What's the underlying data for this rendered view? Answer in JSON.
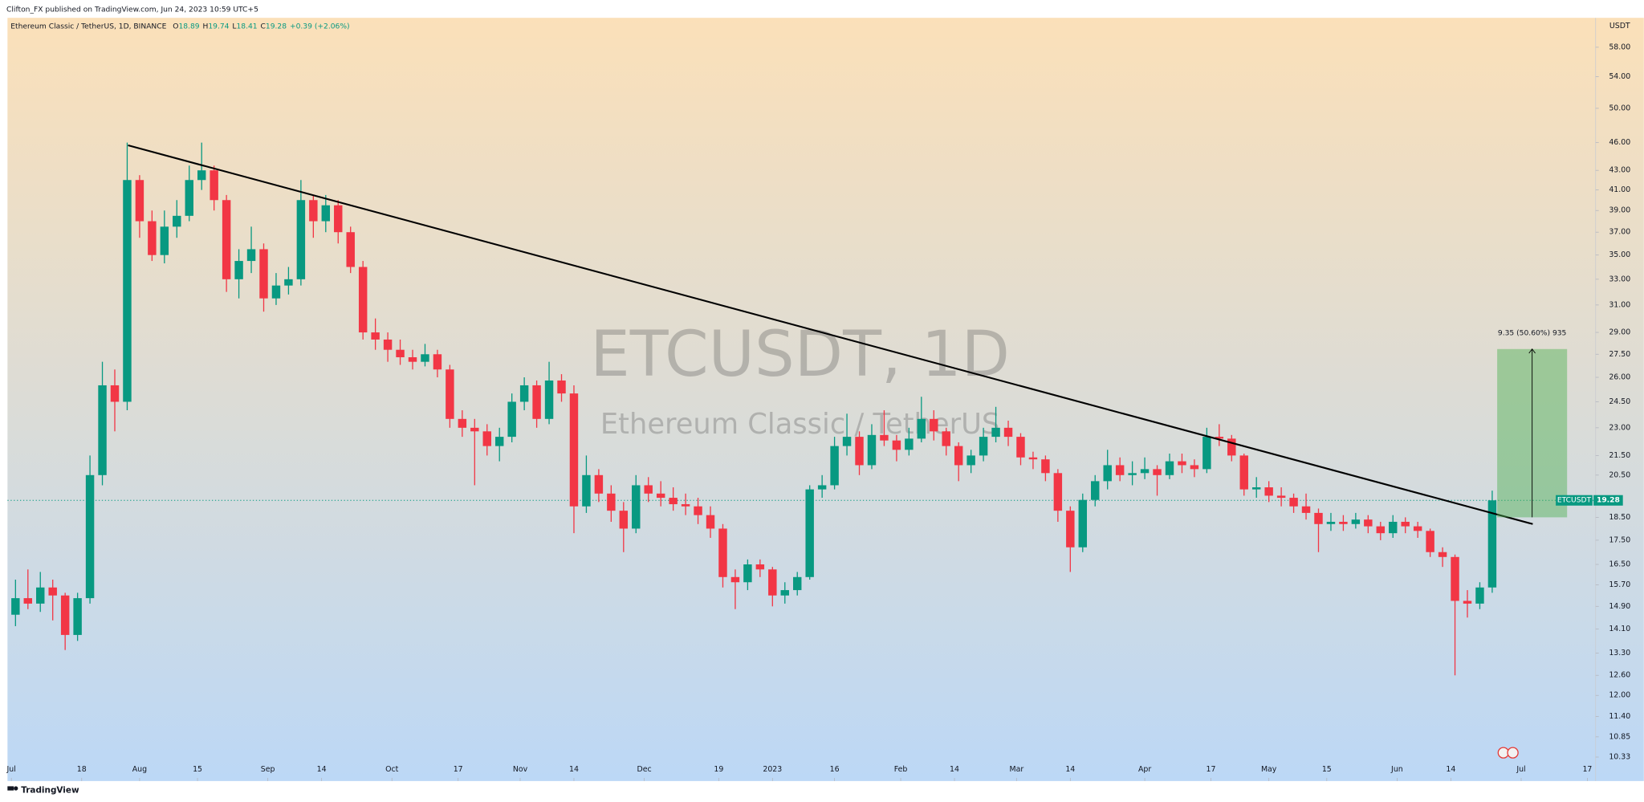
{
  "chart_data": {
    "type": "candlestick",
    "publisher": "Clifton_FX published on TradingView.com, Jun 24, 2023 10:59 UTC+5",
    "symbol_info": "Ethereum Classic / TetherUS, 1D, BINANCE",
    "ohlc_header": [
      {
        "label": "O",
        "value": 18.89
      },
      {
        "label": "H",
        "value": 19.74
      },
      {
        "label": "L",
        "value": 18.41
      },
      {
        "label": "C",
        "value": 19.28
      }
    ],
    "change": "+0.39 (+2.06%)",
    "watermark": "ETCUSDT, 1D",
    "watermark_sub": "Ethereum Classic / TetherUS",
    "y_unit": "USDT",
    "brand": "TradingView",
    "log_scale": true,
    "grid": false,
    "up_color": "#089981",
    "down_color": "#f23645",
    "xlim": [
      -0.94,
      383
    ],
    "ylim": [
      9.82,
      62.3
    ],
    "xticks": [
      {
        "value": 0,
        "label": "Jul"
      },
      {
        "value": 17,
        "label": "18"
      },
      {
        "value": 31,
        "label": "Aug"
      },
      {
        "value": 45,
        "label": "15"
      },
      {
        "value": 62,
        "label": "Sep"
      },
      {
        "value": 75,
        "label": "14"
      },
      {
        "value": 92,
        "label": "Oct"
      },
      {
        "value": 108,
        "label": "17"
      },
      {
        "value": 123,
        "label": "Nov"
      },
      {
        "value": 136,
        "label": "14"
      },
      {
        "value": 153,
        "label": "Dec"
      },
      {
        "value": 171,
        "label": "19"
      },
      {
        "value": 184,
        "label": "2023"
      },
      {
        "value": 199,
        "label": "16"
      },
      {
        "value": 215,
        "label": "Feb"
      },
      {
        "value": 228,
        "label": "14"
      },
      {
        "value": 243,
        "label": "Mar"
      },
      {
        "value": 256,
        "label": "14"
      },
      {
        "value": 274,
        "label": "Apr"
      },
      {
        "value": 290,
        "label": "17"
      },
      {
        "value": 304,
        "label": "May"
      },
      {
        "value": 318,
        "label": "15"
      },
      {
        "value": 335,
        "label": "Jun"
      },
      {
        "value": 348,
        "label": "14"
      },
      {
        "value": 365,
        "label": "Jul"
      },
      {
        "value": 381,
        "label": "17"
      }
    ],
    "yticks": [
      {
        "value": 58,
        "label": "58.00"
      },
      {
        "value": 54,
        "label": "54.00"
      },
      {
        "value": 50,
        "label": "50.00"
      },
      {
        "value": 46,
        "label": "46.00"
      },
      {
        "value": 43,
        "label": "43.00"
      },
      {
        "value": 41,
        "label": "41.00"
      },
      {
        "value": 39,
        "label": "39.00"
      },
      {
        "value": 37,
        "label": "37.00"
      },
      {
        "value": 35,
        "label": "35.00"
      },
      {
        "value": 33,
        "label": "33.00"
      },
      {
        "value": 31,
        "label": "31.00"
      },
      {
        "value": 29,
        "label": "29.00"
      },
      {
        "value": 27.5,
        "label": "27.50"
      },
      {
        "value": 26,
        "label": "26.00"
      },
      {
        "value": 24.5,
        "label": "24.50"
      },
      {
        "value": 23,
        "label": "23.00"
      },
      {
        "value": 21.5,
        "label": "21.50"
      },
      {
        "value": 20.5,
        "label": "20.50"
      },
      {
        "value": 18.5,
        "label": "18.50"
      },
      {
        "value": 17.5,
        "label": "17.50"
      },
      {
        "value": 16.5,
        "label": "16.50"
      },
      {
        "value": 15.7,
        "label": "15.70"
      },
      {
        "value": 14.9,
        "label": "14.90"
      },
      {
        "value": 14.1,
        "label": "14.10"
      },
      {
        "value": 13.3,
        "label": "13.30"
      },
      {
        "value": 12.6,
        "label": "12.60"
      },
      {
        "value": 12,
        "label": "12.00"
      },
      {
        "value": 11.4,
        "label": "11.40"
      },
      {
        "value": 10.85,
        "label": "10.85"
      },
      {
        "value": 10.33,
        "label": "10.33"
      }
    ],
    "candles": {
      "x": [
        1,
        4,
        7,
        10,
        13,
        16,
        19,
        22,
        25,
        28,
        31,
        34,
        37,
        40,
        43,
        46,
        49,
        52,
        55,
        58,
        61,
        64,
        67,
        70,
        73,
        76,
        79,
        82,
        85,
        88,
        91,
        94,
        97,
        100,
        103,
        106,
        109,
        112,
        115,
        118,
        121,
        124,
        127,
        130,
        133,
        136,
        139,
        142,
        145,
        148,
        151,
        154,
        157,
        160,
        163,
        166,
        169,
        172,
        175,
        178,
        181,
        184,
        187,
        190,
        193,
        196,
        199,
        202,
        205,
        208,
        211,
        214,
        217,
        220,
        223,
        226,
        229,
        232,
        235,
        238,
        241,
        244,
        247,
        250,
        253,
        256,
        259,
        262,
        265,
        268,
        271,
        274,
        277,
        280,
        283,
        286,
        289,
        292,
        295,
        298,
        301,
        304,
        307,
        310,
        313,
        316,
        319,
        322,
        325,
        328,
        331,
        334,
        337,
        340,
        343,
        346,
        349,
        352,
        355,
        358
      ],
      "ohlc": [
        [
          14.6,
          15.9,
          14.2,
          15.2
        ],
        [
          15.2,
          16.3,
          14.8,
          15.0
        ],
        [
          15.0,
          16.2,
          14.7,
          15.6
        ],
        [
          15.6,
          15.9,
          14.4,
          15.3
        ],
        [
          15.3,
          15.4,
          13.4,
          13.9
        ],
        [
          13.9,
          15.4,
          13.7,
          15.2
        ],
        [
          15.2,
          21.5,
          15.0,
          20.5
        ],
        [
          20.5,
          27.0,
          20.0,
          25.5
        ],
        [
          25.5,
          26.5,
          22.8,
          24.5
        ],
        [
          24.5,
          46.0,
          24.0,
          42.0
        ],
        [
          42.0,
          42.5,
          36.5,
          38.0
        ],
        [
          38.0,
          39.0,
          34.5,
          35.0
        ],
        [
          35.0,
          39.0,
          34.3,
          37.5
        ],
        [
          37.5,
          40.0,
          36.5,
          38.5
        ],
        [
          38.5,
          43.5,
          38.0,
          42.0
        ],
        [
          42.0,
          46.0,
          41.0,
          43.0
        ],
        [
          43.0,
          43.5,
          39.0,
          40.0
        ],
        [
          40.0,
          40.5,
          32.0,
          33.0
        ],
        [
          33.0,
          35.5,
          31.5,
          34.5
        ],
        [
          34.5,
          37.5,
          33.5,
          35.5
        ],
        [
          35.5,
          36.0,
          30.5,
          31.5
        ],
        [
          31.5,
          33.5,
          31.0,
          32.5
        ],
        [
          32.5,
          34.0,
          31.8,
          33.0
        ],
        [
          33.0,
          42.0,
          32.5,
          40.0
        ],
        [
          40.0,
          40.5,
          36.5,
          38.0
        ],
        [
          38.0,
          40.5,
          37.0,
          39.5
        ],
        [
          39.5,
          40.0,
          36.0,
          37.0
        ],
        [
          37.0,
          37.5,
          33.5,
          34.0
        ],
        [
          34.0,
          34.5,
          28.5,
          29.0
        ],
        [
          29.0,
          30.0,
          27.8,
          28.5
        ],
        [
          28.5,
          29.0,
          27.0,
          27.8
        ],
        [
          27.8,
          28.5,
          26.8,
          27.3
        ],
        [
          27.3,
          27.8,
          26.5,
          27.0
        ],
        [
          27.0,
          28.2,
          26.7,
          27.5
        ],
        [
          27.5,
          27.8,
          26.0,
          26.5
        ],
        [
          26.5,
          26.8,
          23.0,
          23.5
        ],
        [
          23.5,
          24.0,
          22.5,
          23.0
        ],
        [
          23.0,
          23.5,
          20.0,
          22.8
        ],
        [
          22.8,
          23.2,
          21.5,
          22.0
        ],
        [
          22.0,
          23.0,
          21.2,
          22.5
        ],
        [
          22.5,
          25.0,
          22.2,
          24.5
        ],
        [
          24.5,
          26.0,
          24.0,
          25.5
        ],
        [
          25.5,
          25.8,
          23.0,
          23.5
        ],
        [
          23.5,
          27.0,
          23.2,
          25.8
        ],
        [
          25.8,
          26.2,
          24.5,
          25.0
        ],
        [
          25.0,
          25.5,
          17.8,
          19.0
        ],
        [
          19.0,
          21.5,
          18.7,
          20.5
        ],
        [
          20.5,
          20.8,
          19.2,
          19.6
        ],
        [
          19.6,
          20.0,
          18.3,
          18.8
        ],
        [
          18.8,
          19.2,
          17.0,
          18.0
        ],
        [
          18.0,
          20.5,
          17.8,
          20.0
        ],
        [
          20.0,
          20.4,
          19.2,
          19.6
        ],
        [
          19.6,
          20.2,
          19.0,
          19.4
        ],
        [
          19.4,
          19.9,
          18.8,
          19.1
        ],
        [
          19.1,
          19.6,
          18.6,
          19.0
        ],
        [
          19.0,
          19.4,
          18.2,
          18.6
        ],
        [
          18.6,
          19.0,
          17.6,
          18.0
        ],
        [
          18.0,
          18.2,
          15.6,
          16.0
        ],
        [
          16.0,
          16.3,
          14.8,
          15.8
        ],
        [
          15.8,
          16.7,
          15.5,
          16.5
        ],
        [
          16.5,
          16.7,
          16.0,
          16.3
        ],
        [
          16.3,
          16.4,
          14.9,
          15.3
        ],
        [
          15.3,
          15.8,
          15.0,
          15.5
        ],
        [
          15.5,
          16.2,
          15.3,
          16.0
        ],
        [
          16.0,
          20.0,
          15.9,
          19.8
        ],
        [
          19.8,
          20.5,
          19.4,
          20.0
        ],
        [
          20.0,
          22.5,
          19.8,
          22.0
        ],
        [
          22.0,
          23.8,
          21.5,
          22.5
        ],
        [
          22.5,
          22.8,
          20.5,
          21.0
        ],
        [
          21.0,
          23.2,
          20.8,
          22.6
        ],
        [
          22.6,
          24.0,
          22.0,
          22.3
        ],
        [
          22.3,
          22.6,
          21.2,
          21.8
        ],
        [
          21.8,
          23.0,
          21.5,
          22.4
        ],
        [
          22.4,
          24.8,
          22.2,
          23.5
        ],
        [
          23.5,
          24.0,
          22.3,
          22.8
        ],
        [
          22.8,
          23.0,
          21.5,
          22.0
        ],
        [
          22.0,
          22.2,
          20.2,
          21.0
        ],
        [
          21.0,
          21.8,
          20.6,
          21.5
        ],
        [
          21.5,
          23.0,
          21.2,
          22.5
        ],
        [
          22.5,
          24.2,
          22.2,
          23.0
        ],
        [
          23.0,
          23.4,
          22.0,
          22.5
        ],
        [
          22.5,
          22.7,
          21.0,
          21.4
        ],
        [
          21.4,
          21.7,
          20.8,
          21.3
        ],
        [
          21.3,
          21.5,
          20.2,
          20.6
        ],
        [
          20.6,
          20.8,
          18.3,
          18.8
        ],
        [
          18.8,
          19.0,
          16.2,
          17.2
        ],
        [
          17.2,
          19.6,
          17.0,
          19.3
        ],
        [
          19.3,
          20.5,
          19.0,
          20.2
        ],
        [
          20.2,
          21.8,
          19.8,
          21.0
        ],
        [
          21.0,
          21.4,
          20.2,
          20.5
        ],
        [
          20.5,
          21.2,
          20.0,
          20.6
        ],
        [
          20.6,
          21.4,
          20.3,
          20.8
        ],
        [
          20.8,
          21.0,
          19.5,
          20.5
        ],
        [
          20.5,
          21.6,
          20.3,
          21.2
        ],
        [
          21.2,
          21.6,
          20.6,
          21.0
        ],
        [
          21.0,
          21.3,
          20.4,
          20.8
        ],
        [
          20.8,
          23.0,
          20.6,
          22.5
        ],
        [
          22.5,
          23.2,
          22.0,
          22.4
        ],
        [
          22.4,
          22.6,
          21.2,
          21.5
        ],
        [
          21.5,
          21.6,
          19.5,
          19.8
        ],
        [
          19.8,
          20.4,
          19.4,
          19.9
        ],
        [
          19.9,
          20.2,
          19.2,
          19.5
        ],
        [
          19.5,
          19.9,
          19.0,
          19.4
        ],
        [
          19.4,
          19.6,
          18.7,
          19.0
        ],
        [
          19.0,
          19.6,
          18.4,
          18.7
        ],
        [
          18.7,
          18.9,
          17.0,
          18.2
        ],
        [
          18.2,
          18.7,
          17.9,
          18.3
        ],
        [
          18.3,
          18.6,
          17.9,
          18.2
        ],
        [
          18.2,
          18.7,
          18.0,
          18.4
        ],
        [
          18.4,
          18.6,
          17.8,
          18.1
        ],
        [
          18.1,
          18.3,
          17.5,
          17.8
        ],
        [
          17.8,
          18.6,
          17.6,
          18.3
        ],
        [
          18.3,
          18.5,
          17.8,
          18.1
        ],
        [
          18.1,
          18.3,
          17.6,
          17.9
        ],
        [
          17.9,
          18.0,
          16.8,
          17.0
        ],
        [
          17.0,
          17.2,
          16.4,
          16.8
        ],
        [
          16.8,
          16.9,
          12.6,
          15.1
        ],
        [
          15.1,
          15.5,
          14.5,
          15.0
        ],
        [
          15.0,
          15.8,
          14.8,
          15.6
        ],
        [
          15.6,
          19.74,
          15.4,
          19.28
        ]
      ]
    },
    "trendline": {
      "x": [
        28.2,
        367.8
      ],
      "y": [
        45.7,
        18.2
      ],
      "color": "#000000"
    },
    "price_tag": {
      "symbol": "ETCUSDT",
      "value": 19.28
    },
    "measure": {
      "label": "9.35 (50.60%) 935",
      "x": [
        359.2,
        376.1
      ],
      "y": [
        18.5,
        27.85
      ],
      "color": "#4caf50"
    }
  }
}
